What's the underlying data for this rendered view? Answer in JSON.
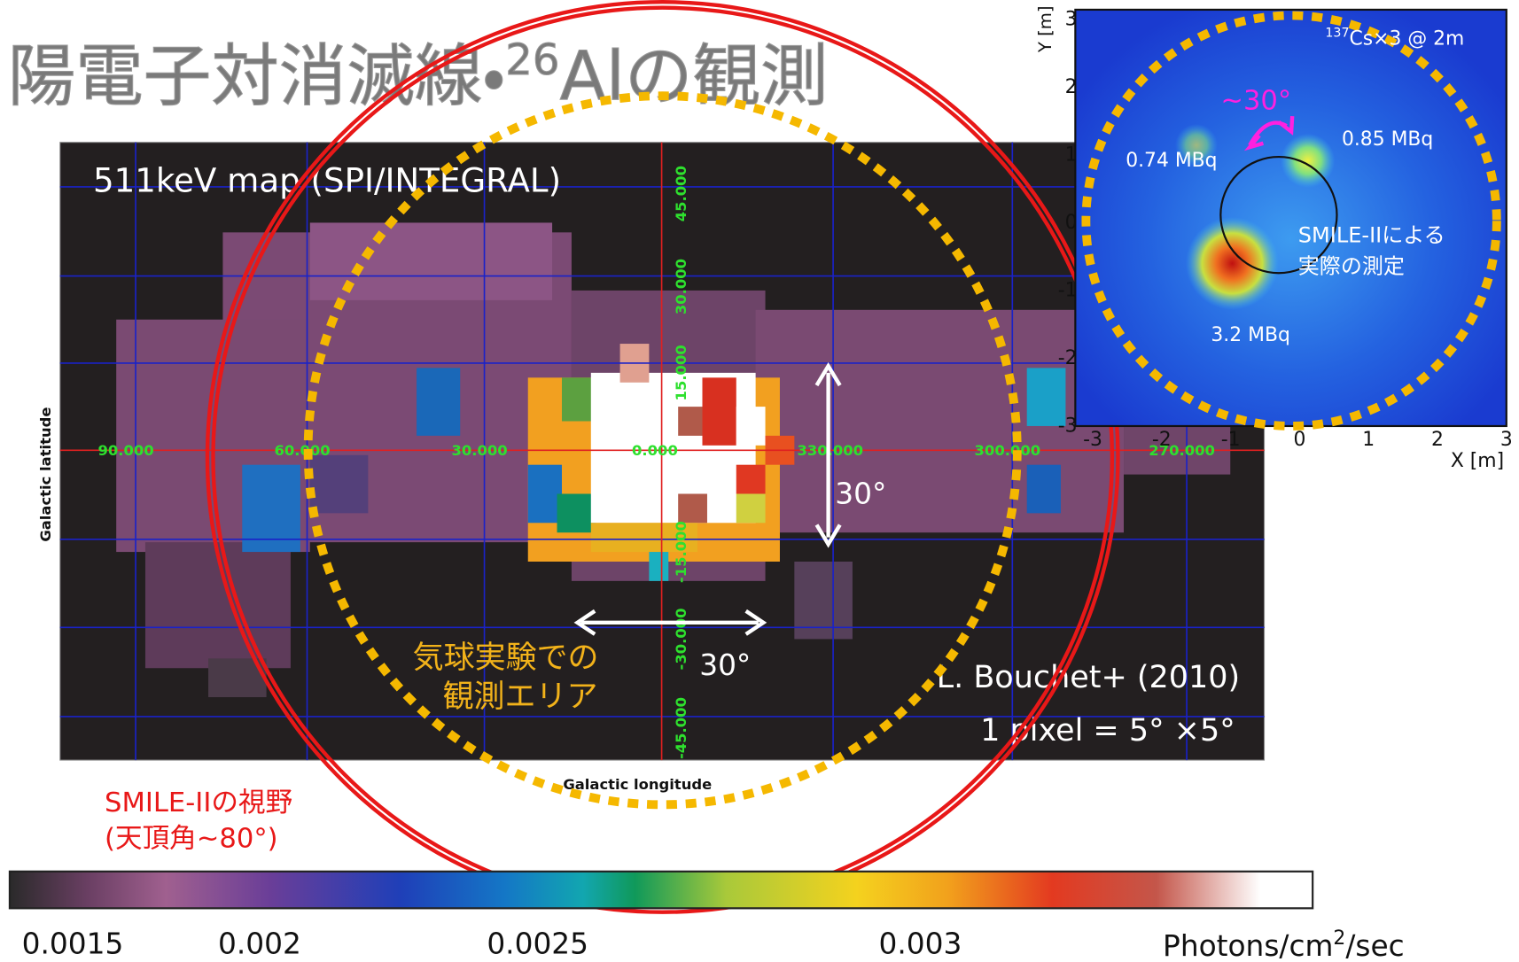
{
  "title": {
    "prefix": "陽電子対消滅線・",
    "superscript": "26",
    "suffix": "Alの観測"
  },
  "map": {
    "label": "511keV map (SPI/INTEGRAL)",
    "y_axis_label": "Galactic latitude",
    "x_axis_label": "Galactic longitude",
    "longitude_ticks": [
      "90.000",
      "60.000",
      "30.000",
      "0.000",
      "330.000",
      "300.000",
      "270.000"
    ],
    "latitude_ticks": [
      "45.000",
      "30.000",
      "15.000",
      "-15.000",
      "-30.000",
      "-45.000"
    ],
    "lat_extent_label": "30°",
    "lon_extent_label": "30°",
    "balloon_area": [
      "気球実験での",
      "観測エリア"
    ],
    "credit": "L. Bouchet+ (2010)",
    "pixel_size": "1 pixel = 5° ×5°",
    "fov": [
      "SMILE-IIの視野",
      "(天頂角~80°)"
    ]
  },
  "colorbar": {
    "ticks": [
      0.0015,
      0.002,
      0.0025,
      0.003
    ],
    "unit": {
      "prefix": "Photons/cm",
      "superscript": "2",
      "suffix": "/sec"
    }
  },
  "inset": {
    "y_label": "Y [m]",
    "x_label": "X [m]",
    "xticks": [
      -3,
      -2,
      -1,
      0,
      1,
      2,
      3
    ],
    "yticks": [
      -3,
      -2,
      -1,
      0,
      1,
      2,
      3
    ],
    "source": {
      "superscript": "137",
      "text": "Cs×3 @ 2m"
    },
    "angle": "~30°",
    "sources": [
      "0.74 MBq",
      "0.85 MBq",
      "3.2 MBq"
    ],
    "note": [
      "SMILE-IIによる",
      "実際の測定"
    ]
  }
}
